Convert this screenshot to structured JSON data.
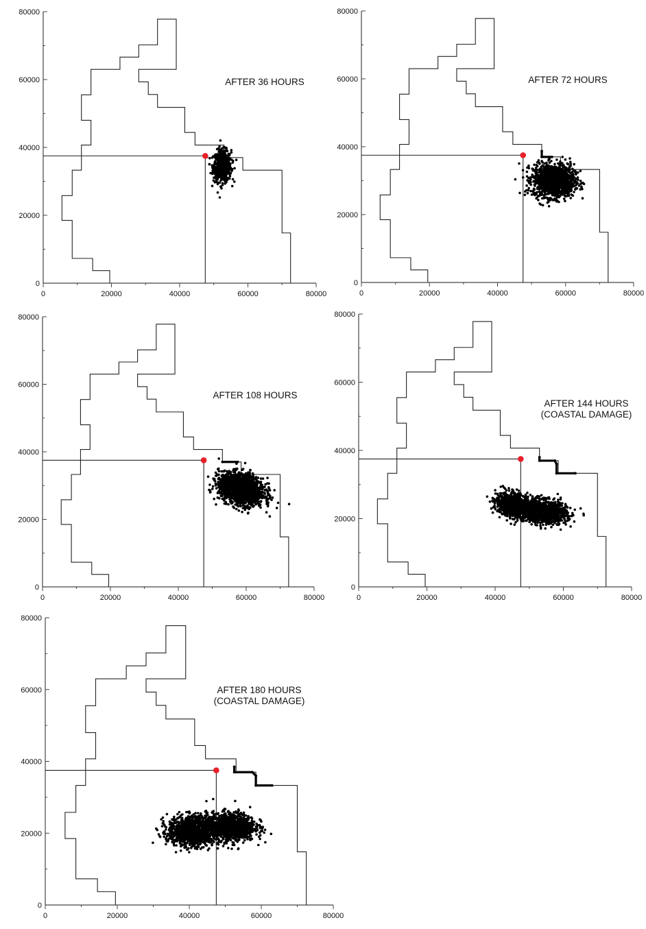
{
  "chart_data": [
    {
      "type": "scatter",
      "title": "AFTER 36 HOURS",
      "title_lines": [
        "AFTER 36 HOURS"
      ],
      "xlim": [
        0,
        80000
      ],
      "ylim": [
        0,
        80000
      ],
      "x_ticks": [
        0,
        20000,
        40000,
        60000,
        80000
      ],
      "y_ticks": [
        0,
        20000,
        40000,
        60000,
        80000
      ],
      "source": {
        "x": 47500,
        "y": 37500
      },
      "clusters": [
        {
          "cx": 52500,
          "cy": 34500,
          "sx": 1300,
          "sy": 2300,
          "n": 700,
          "tilt": 0
        }
      ],
      "coastal_segments": []
    },
    {
      "type": "scatter",
      "title": "AFTER 72 HOURS",
      "title_lines": [
        "AFTER 72 HOURS"
      ],
      "xlim": [
        0,
        80000
      ],
      "ylim": [
        0,
        80000
      ],
      "x_ticks": [
        0,
        20000,
        40000,
        60000,
        80000
      ],
      "y_ticks": [
        0,
        20000,
        40000,
        60000,
        80000
      ],
      "source": {
        "x": 47500,
        "y": 37500
      },
      "clusters": [
        {
          "cx": 56500,
          "cy": 30000,
          "sx": 3000,
          "sy": 2400,
          "n": 1400,
          "tilt": 0
        }
      ],
      "coastal_segments": [
        [
          [
            53000,
            38700
          ],
          [
            53000,
            37000
          ],
          [
            56000,
            37000
          ]
        ]
      ]
    },
    {
      "type": "scatter",
      "title": "AFTER 108 HOURS",
      "title_lines": [
        "AFTER 108 HOURS"
      ],
      "xlim": [
        0,
        80000
      ],
      "ylim": [
        0,
        80000
      ],
      "x_ticks": [
        0,
        20000,
        40000,
        60000,
        80000
      ],
      "y_ticks": [
        0,
        20000,
        40000,
        60000,
        80000
      ],
      "source": {
        "x": 47500,
        "y": 37500
      },
      "clusters": [
        {
          "cx": 58500,
          "cy": 29000,
          "sx": 3300,
          "sy": 2200,
          "n": 1700,
          "tilt": -0.35
        }
      ],
      "coastal_segments": [
        [
          [
            53000,
            37000
          ],
          [
            57500,
            37000
          ]
        ]
      ]
    },
    {
      "type": "scatter",
      "title": "AFTER 144 HOURS (COASTAL DAMAGE)",
      "title_lines": [
        "AFTER 144 HOURS",
        "(COASTAL DAMAGE)"
      ],
      "xlim": [
        0,
        80000
      ],
      "ylim": [
        0,
        80000
      ],
      "x_ticks": [
        0,
        20000,
        40000,
        60000,
        80000
      ],
      "y_ticks": [
        0,
        20000,
        40000,
        60000,
        80000
      ],
      "source": {
        "x": 47500,
        "y": 37500
      },
      "clusters": [
        {
          "cx": 45500,
          "cy": 24000,
          "sx": 2600,
          "sy": 1700,
          "n": 900,
          "tilt": -0.25
        },
        {
          "cx": 54500,
          "cy": 22000,
          "sx": 3200,
          "sy": 1700,
          "n": 1100,
          "tilt": -0.2
        }
      ],
      "coastal_segments": [
        [
          [
            53000,
            38000
          ],
          [
            53000,
            37000
          ],
          [
            57500,
            37000
          ],
          [
            58000,
            36000
          ],
          [
            58000,
            33300
          ],
          [
            63500,
            33300
          ]
        ]
      ]
    },
    {
      "type": "scatter",
      "title": "AFTER 180 HOURS (COASTAL DAMAGE)",
      "title_lines": [
        "AFTER 180 HOURS",
        "(COASTAL DAMAGE)"
      ],
      "xlim": [
        0,
        80000
      ],
      "ylim": [
        0,
        80000
      ],
      "x_ticks": [
        0,
        20000,
        40000,
        60000,
        80000
      ],
      "y_ticks": [
        0,
        20000,
        40000,
        60000,
        80000
      ],
      "source": {
        "x": 47500,
        "y": 37500
      },
      "clusters": [
        {
          "cx": 40500,
          "cy": 20500,
          "sx": 3200,
          "sy": 2100,
          "n": 1100,
          "tilt": 0
        },
        {
          "cx": 51500,
          "cy": 21800,
          "sx": 3400,
          "sy": 2000,
          "n": 1100,
          "tilt": 0
        }
      ],
      "coastal_segments": [
        [
          [
            52500,
            38500
          ],
          [
            52500,
            37000
          ],
          [
            57500,
            37000
          ],
          [
            58500,
            36000
          ],
          [
            58500,
            33300
          ],
          [
            63000,
            33300
          ]
        ]
      ]
    }
  ],
  "shared": {
    "coastline": [
      [
        19500,
        0
      ],
      [
        19500,
        3700
      ],
      [
        14500,
        3700
      ],
      [
        14500,
        7300
      ],
      [
        8500,
        7300
      ],
      [
        8500,
        18500
      ],
      [
        5500,
        18500
      ],
      [
        5500,
        25800
      ],
      [
        8500,
        25800
      ],
      [
        8500,
        33300
      ],
      [
        11200,
        33300
      ],
      [
        11200,
        40700
      ],
      [
        14000,
        40700
      ],
      [
        14000,
        48000
      ],
      [
        11200,
        48000
      ],
      [
        11200,
        55500
      ],
      [
        14000,
        55500
      ],
      [
        14000,
        63000
      ],
      [
        22500,
        63000
      ],
      [
        22500,
        66600
      ],
      [
        28000,
        66600
      ],
      [
        28000,
        70200
      ],
      [
        33500,
        70200
      ],
      [
        33500,
        77800
      ],
      [
        39000,
        77800
      ],
      [
        39000,
        63000
      ],
      [
        28000,
        63000
      ],
      [
        28000,
        59300
      ],
      [
        30800,
        59300
      ],
      [
        30800,
        55600
      ],
      [
        33500,
        55600
      ],
      [
        33500,
        51800
      ],
      [
        41500,
        51800
      ],
      [
        41500,
        44400
      ],
      [
        44500,
        44400
      ],
      [
        44500,
        40700
      ],
      [
        53000,
        40700
      ],
      [
        53000,
        37000
      ],
      [
        58500,
        37000
      ],
      [
        58500,
        33300
      ],
      [
        70000,
        33300
      ],
      [
        70000,
        14800
      ],
      [
        72500,
        14800
      ],
      [
        72500,
        0
      ]
    ],
    "channel_path": [
      [
        0,
        37500
      ],
      [
        47500,
        37500
      ],
      [
        47500,
        0
      ]
    ],
    "colors": {
      "axes": "#444444",
      "coastline": "#222222",
      "particles": "#000000",
      "source": "#e8202a"
    }
  }
}
